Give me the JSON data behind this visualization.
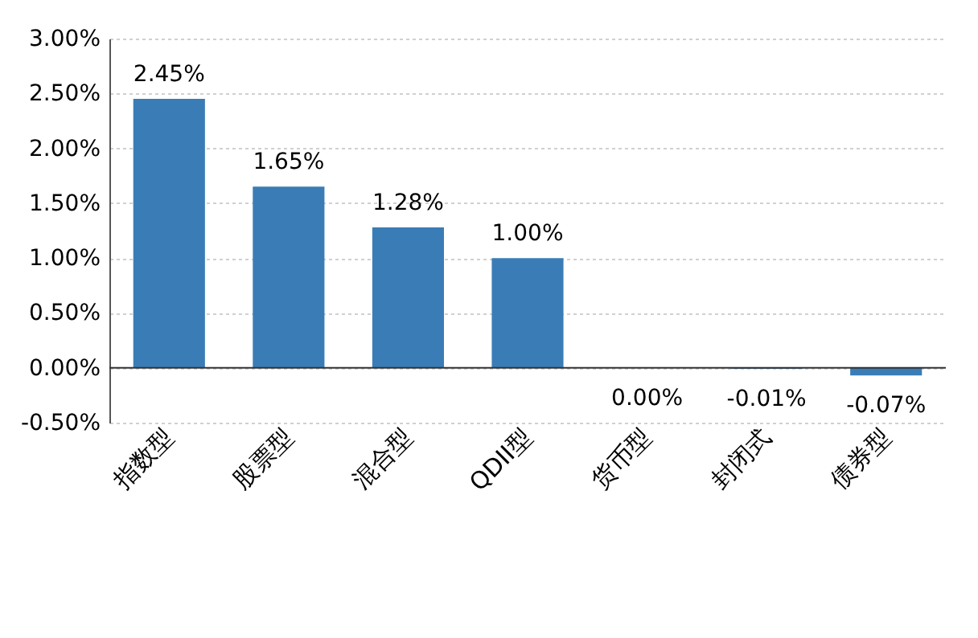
{
  "chart_data": {
    "type": "bar",
    "categories": [
      "指数型",
      "股票型",
      "混合型",
      "QDII型",
      "货币型",
      "封闭式",
      "债券型"
    ],
    "values": [
      2.45,
      1.65,
      1.28,
      1.0,
      0.0,
      -0.01,
      -0.07
    ],
    "color": "#3a7db6",
    "value_labels": [
      "2.45%",
      "1.65%",
      "1.28%",
      "1.00%",
      "0.00%",
      "-0.01%",
      "-0.07%"
    ],
    "ylim": [
      -0.5,
      3.0
    ],
    "yticks": [
      {
        "value": -0.5,
        "label": "-0.50%"
      },
      {
        "value": 0,
        "label": "0.00%"
      },
      {
        "value": 0.5,
        "label": "0.50%"
      },
      {
        "value": 1.0,
        "label": "1.00%"
      },
      {
        "value": 1.5,
        "label": "1.50%"
      },
      {
        "value": 2.0,
        "label": "2.00%"
      },
      {
        "value": 2.5,
        "label": "2.50%"
      },
      {
        "value": 3.0,
        "label": "3.00%"
      }
    ],
    "grid": "y"
  }
}
